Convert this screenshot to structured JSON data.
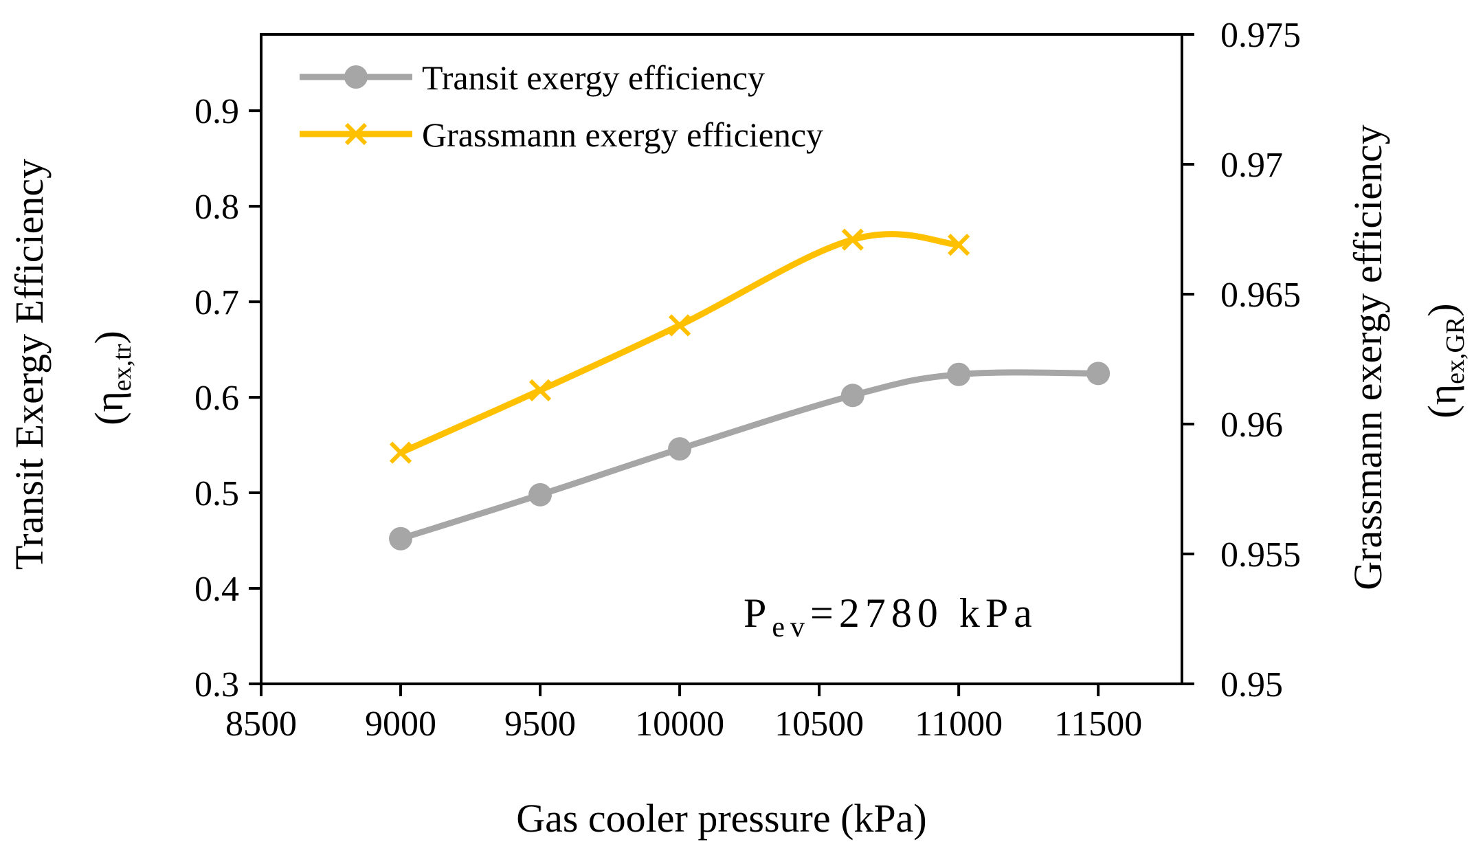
{
  "chart_data": {
    "type": "line",
    "xlabel": "Gas cooler pressure (kPa)",
    "ylabel_left": {
      "line1": "Transit  Exergy Efficiency",
      "open": "(η",
      "sub": "ex,tr",
      "close": ")"
    },
    "ylabel_right": {
      "line1": "Grassmann exergy efficiency",
      "open": "(η",
      "sub": "ex,GR",
      "close": ")"
    },
    "xlim": [
      8500,
      11800
    ],
    "xticks": [
      8500,
      9000,
      9500,
      10000,
      10500,
      11000,
      11500
    ],
    "xtick_labels": [
      "8500",
      "9000",
      "9500",
      "10000",
      "10500",
      "11000",
      "11500"
    ],
    "ylim_left": [
      0.3,
      0.98
    ],
    "yticks_left": [
      0.3,
      0.4,
      0.5,
      0.6,
      0.7,
      0.8,
      0.9
    ],
    "ytick_labels_left": [
      "0.3",
      "0.4",
      "0.5",
      "0.6",
      "0.7",
      "0.8",
      "0.9"
    ],
    "ylim_right": [
      0.95,
      0.975
    ],
    "yticks_right": [
      0.95,
      0.955,
      0.96,
      0.965,
      0.97,
      0.975
    ],
    "ytick_labels_right": [
      "0.95",
      "0.955",
      "0.96",
      "0.965",
      "0.97",
      "0.975"
    ],
    "series": [
      {
        "name": "Transit exergy efficiency",
        "axis": "left",
        "marker": "circle",
        "color": "#A6A6A6",
        "x": [
          9000,
          9500,
          10000,
          10620,
          11000,
          11500
        ],
        "y": [
          0.452,
          0.498,
          0.546,
          0.602,
          0.624,
          0.625
        ]
      },
      {
        "name": "Grassmann exergy efficiency",
        "axis": "right",
        "marker": "x",
        "color": "#FFC000",
        "x": [
          9000,
          9500,
          10000,
          10620,
          11000
        ],
        "y": [
          0.9589,
          0.9613,
          0.9638,
          0.9671,
          0.9669
        ]
      }
    ],
    "annotation": {
      "base": "P",
      "sub": "ev",
      "rest": "=2780  kPa"
    },
    "legend_position": "top-left"
  }
}
